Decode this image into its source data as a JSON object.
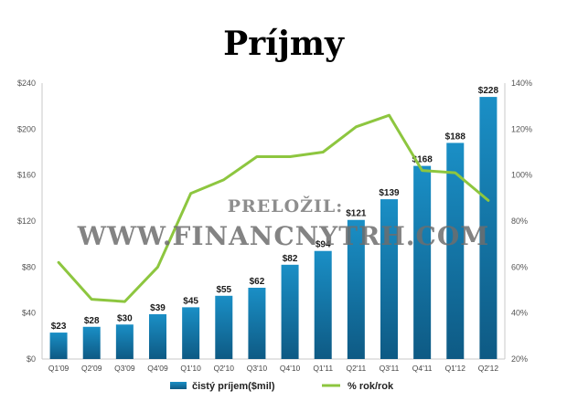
{
  "chart_data": {
    "type": "bar",
    "title": "Príjmy",
    "categories": [
      "Q1'09",
      "Q2'09",
      "Q3'09",
      "Q4'09",
      "Q1'10",
      "Q2'10",
      "Q3'10",
      "Q4'10",
      "Q1'11",
      "Q2'11",
      "Q3'11",
      "Q4'11",
      "Q1'12",
      "Q2'12"
    ],
    "series": [
      {
        "name": "čistý príjem($mil)",
        "type": "bar",
        "axis": "left",
        "values": [
          23,
          28,
          30,
          39,
          45,
          55,
          62,
          82,
          94,
          121,
          139,
          168,
          188,
          228
        ],
        "labels": [
          "$23",
          "$28",
          "$30",
          "$39",
          "$45",
          "$55",
          "$62",
          "$82",
          "$94",
          "$121",
          "$139",
          "$168",
          "$188",
          "$228"
        ],
        "color": "#1a6fa3"
      },
      {
        "name": "% rok/rok",
        "type": "line",
        "axis": "right",
        "values": [
          62,
          46,
          45,
          60,
          92,
          98,
          108,
          108,
          110,
          121,
          126,
          102,
          101,
          89
        ],
        "color": "#8dc63f"
      }
    ],
    "y_left": {
      "min": 0,
      "max": 240,
      "ticks": [
        "$0",
        "$40",
        "$80",
        "$120",
        "$160",
        "$200",
        "$240"
      ]
    },
    "y_right": {
      "min": 20,
      "max": 140,
      "ticks": [
        "20%",
        "40%",
        "60%",
        "80%",
        "100%",
        "120%",
        "140%"
      ]
    },
    "grid": false,
    "legend": "bottom"
  },
  "watermark": {
    "line1": "PRELOŽIL:",
    "line2": "WWW.FINANCNYTRH.COM"
  }
}
